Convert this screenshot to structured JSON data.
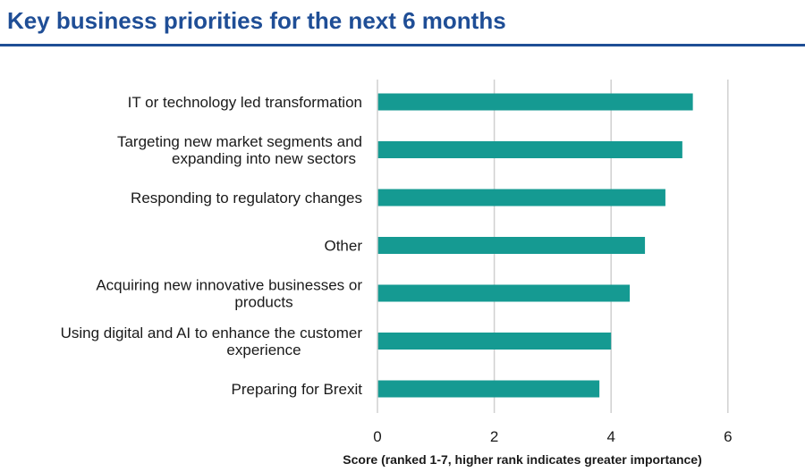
{
  "page": {
    "title": "Key business priorities for the next 6 months"
  },
  "chart_data": {
    "type": "bar",
    "orientation": "horizontal",
    "title": "",
    "categories": [
      "IT or technology led transformation",
      "Targeting new market segments and expanding into new sectors",
      "Responding to regulatory changes",
      "Other",
      "Acquiring new innovative businesses or products",
      "Using digital and AI to enhance the customer experience",
      "Preparing for Brexit"
    ],
    "category_lines": [
      [
        "IT or technology led transformation"
      ],
      [
        "Targeting new market segments and",
        "expanding into new sectors"
      ],
      [
        "Responding to regulatory changes"
      ],
      [
        "Other"
      ],
      [
        "Acquiring new innovative businesses or",
        "products"
      ],
      [
        "Using digital and AI to enhance the customer",
        "experience"
      ],
      [
        "Preparing for Brexit"
      ]
    ],
    "values": [
      5.4,
      5.22,
      4.93,
      4.58,
      4.32,
      4.0,
      3.8
    ],
    "xlim": [
      0,
      6
    ],
    "xticks": [
      0,
      2,
      4,
      6
    ],
    "xtick_labels": [
      "0",
      "2",
      "4",
      "6"
    ],
    "xlabel": "Score (ranked 1-7, higher rank indicates greater importance)",
    "ylabel": "",
    "grid": "vertical",
    "legend": "none",
    "colors": {
      "bar": "#159a92",
      "grid": "#d0d0d0",
      "title": "#1f4e96"
    }
  }
}
